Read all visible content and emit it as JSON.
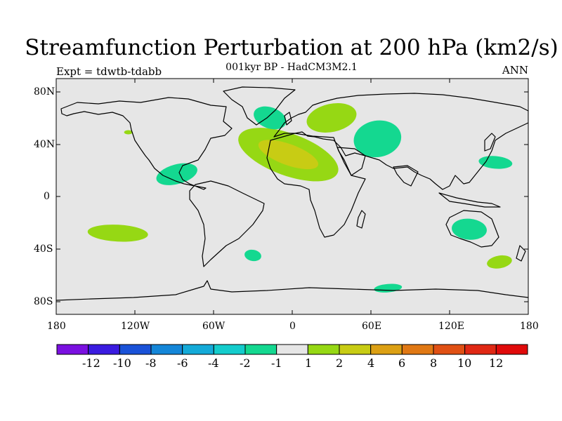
{
  "title": "Streamfunction Perturbation at 200 hPa (km2/s)",
  "subtitle": "001kyr BP - HadCM3M2.1",
  "left_label": "Expt = tdwtb-tdabb",
  "right_label": "ANN",
  "lat_labels": [
    "80N",
    "40N",
    "0",
    "40S",
    "80S"
  ],
  "lon_labels": [
    "180",
    "120W",
    "60W",
    "0",
    "60E",
    "120E",
    "180"
  ],
  "colorbar": {
    "colors": [
      "#7a10e0",
      "#3a1be0",
      "#1a52d8",
      "#1486d8",
      "#14aad8",
      "#14cccc",
      "#14d890",
      "#e6e6e6",
      "#96d814",
      "#c8cc14",
      "#dca014",
      "#e07814",
      "#e05014",
      "#e02814",
      "#e00a0a"
    ],
    "labels": [
      "-12",
      "-10",
      "-8",
      "-6",
      "-4",
      "-2",
      "-1",
      "1",
      "2",
      "4",
      "6",
      "8",
      "10",
      "12"
    ]
  },
  "chart_data": {
    "type": "map",
    "variable": "Streamfunction perturbation at 200 hPa",
    "units": "km2/s",
    "projection": "cylindrical equidistant",
    "lon_range": [
      -180,
      180
    ],
    "lat_range": [
      -90,
      90
    ],
    "anomalies": [
      {
        "name": "north-atlantic-north-africa",
        "center": [
          -3,
          32
        ],
        "level": "2 to 4",
        "peak": "4"
      },
      {
        "name": "europe-scandinavia",
        "center": [
          30,
          60
        ],
        "level": "1 to 2"
      },
      {
        "name": "greenland-iceland",
        "center": [
          -17,
          60
        ],
        "level": "-2 to -1"
      },
      {
        "name": "central-asia",
        "center": [
          65,
          44
        ],
        "level": "-2 to -1"
      },
      {
        "name": "caribbean",
        "center": [
          -88,
          17
        ],
        "level": "-2 to -1"
      },
      {
        "name": "north-pacific-east-asia",
        "center": [
          155,
          26
        ],
        "level": "-2 to -1"
      },
      {
        "name": "australia",
        "center": [
          135,
          -25
        ],
        "level": "-2 to -1"
      },
      {
        "name": "new-zealand",
        "center": [
          158,
          -50
        ],
        "level": "1 to 2"
      },
      {
        "name": "south-pacific",
        "center": [
          -133,
          -28
        ],
        "level": "1 to 2"
      },
      {
        "name": "south-atlantic",
        "center": [
          -30,
          -45
        ],
        "level": "-2 to -1"
      },
      {
        "name": "southern-indian-ocean",
        "center": [
          73,
          -70
        ],
        "level": "-2 to -1"
      },
      {
        "name": "north-pacific-coast",
        "center": [
          -125,
          49
        ],
        "level": "1 to 2"
      }
    ]
  }
}
